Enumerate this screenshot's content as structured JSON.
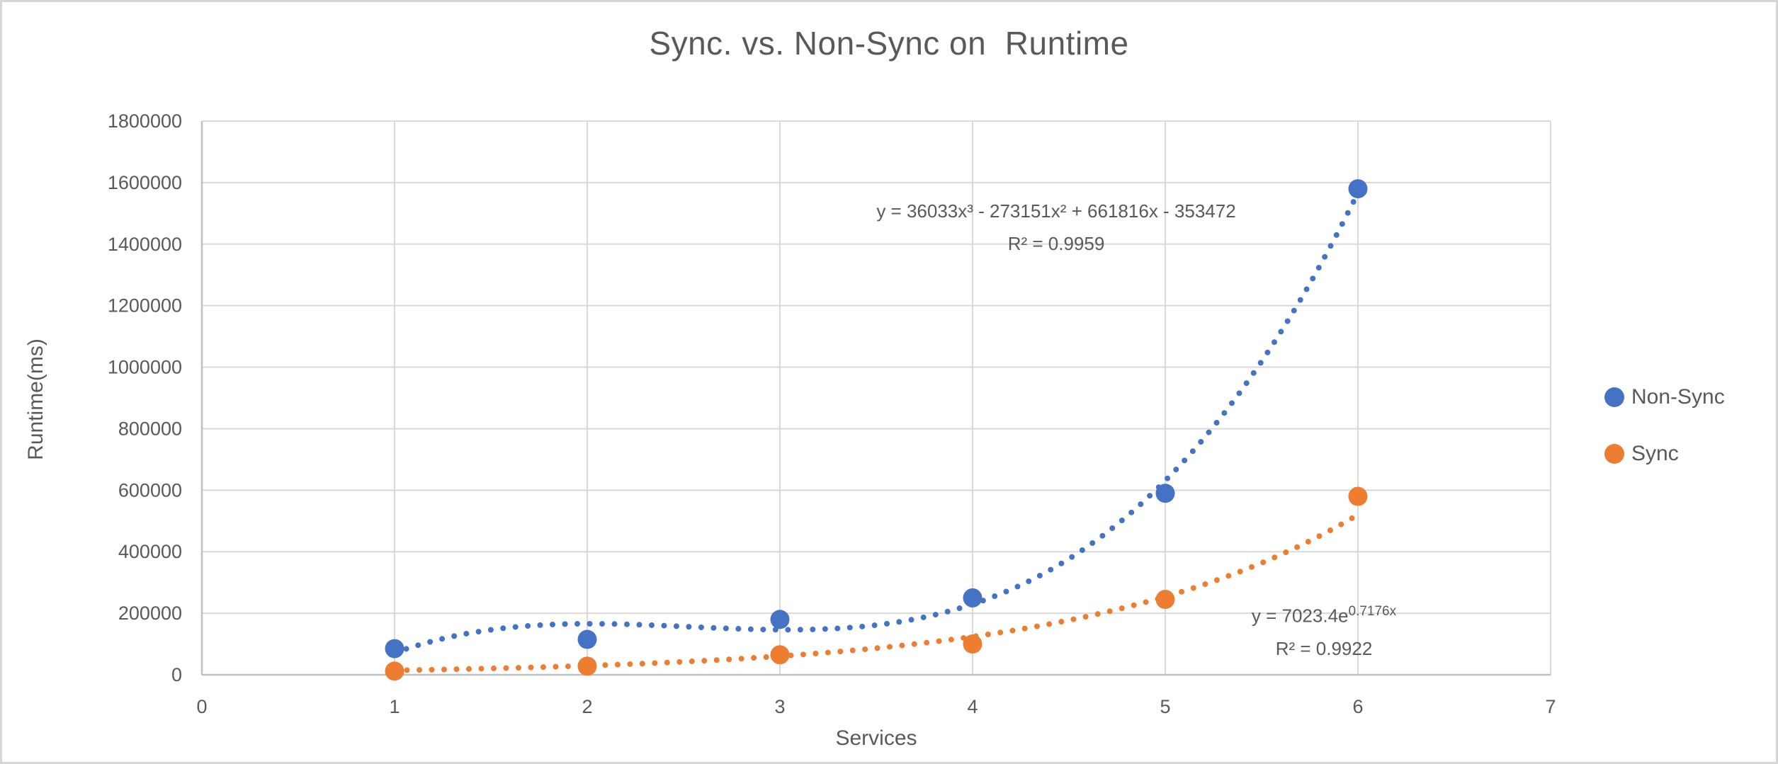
{
  "chart_data": {
    "type": "scatter",
    "title": "Sync. vs. Non-Sync on  Runtime",
    "xlabel": "Services",
    "ylabel": "Runtime(ms)",
    "xlim": [
      0,
      7
    ],
    "ylim": [
      0,
      1800000
    ],
    "x_ticks": [
      "0",
      "1",
      "2",
      "3",
      "4",
      "5",
      "6",
      "7"
    ],
    "y_ticks": [
      "0",
      "200000",
      "400000",
      "600000",
      "800000",
      "1000000",
      "1200000",
      "1400000",
      "1600000",
      "1800000"
    ],
    "grid": true,
    "legend_position": "right",
    "colors": {
      "grid": "#d9d9d9",
      "axis": "#bfbfbf",
      "text": "#595959"
    },
    "series": [
      {
        "name": "Non-Sync",
        "color": "#4472C4",
        "x": [
          1,
          2,
          3,
          4,
          5,
          6
        ],
        "y": [
          85000,
          115000,
          180000,
          250000,
          590000,
          1580000
        ],
        "trendline": {
          "kind": "polynomial",
          "degree": 3,
          "coefficients": [
            36033,
            -273151,
            661816,
            -353472
          ],
          "equation_label": "y = 36033x³ - 273151x² + 661816x - 353472",
          "r2_label": "R² = 0.9959"
        }
      },
      {
        "name": "Sync",
        "color": "#ED7D31",
        "x": [
          1,
          2,
          3,
          4,
          5,
          6
        ],
        "y": [
          12000,
          28000,
          65000,
          100000,
          245000,
          580000
        ],
        "trendline": {
          "kind": "exponential",
          "a": 7023.4,
          "b": 0.7176,
          "equation_base": "y = 7023.4e",
          "equation_exponent": "0.7176x",
          "r2_label": "R² = 0.9922"
        }
      }
    ]
  }
}
